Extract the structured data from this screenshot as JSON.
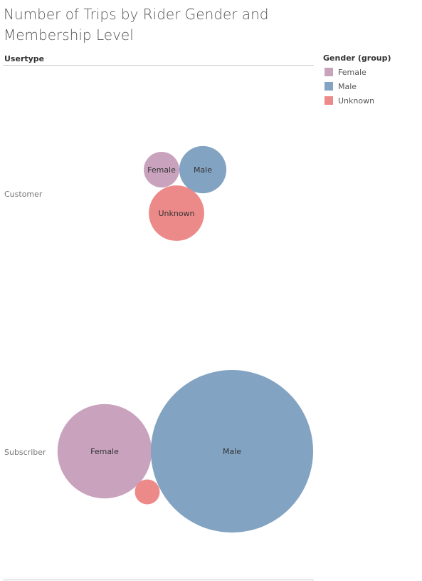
{
  "chart_data": {
    "type": "bubble",
    "title": "Number of Trips by Rider Gender and Membership Level",
    "column_header": "Usertype",
    "legend": {
      "title": "Gender (group)",
      "placement": "top-right",
      "items": [
        {
          "label": "Female",
          "color": "#c9a3be"
        },
        {
          "label": "Male",
          "color": "#83a3c3"
        },
        {
          "label": "Unknown",
          "color": "#ec8a89"
        }
      ]
    },
    "rows": [
      {
        "label": "Customer",
        "bubbles": [
          {
            "gender": "Female",
            "label": "Female",
            "trips": 2450
          },
          {
            "gender": "Male",
            "label": "Male",
            "trips": 4300
          },
          {
            "gender": "Unknown",
            "label": "Unknown",
            "trips": 5950
          }
        ]
      },
      {
        "label": "Subscriber",
        "bubbles": [
          {
            "gender": "Female",
            "label": "Female",
            "trips": 17200
          },
          {
            "gender": "Male",
            "label": "Male",
            "trips": 51000
          },
          {
            "gender": "Unknown",
            "label": "",
            "trips": 1200
          }
        ]
      }
    ]
  }
}
